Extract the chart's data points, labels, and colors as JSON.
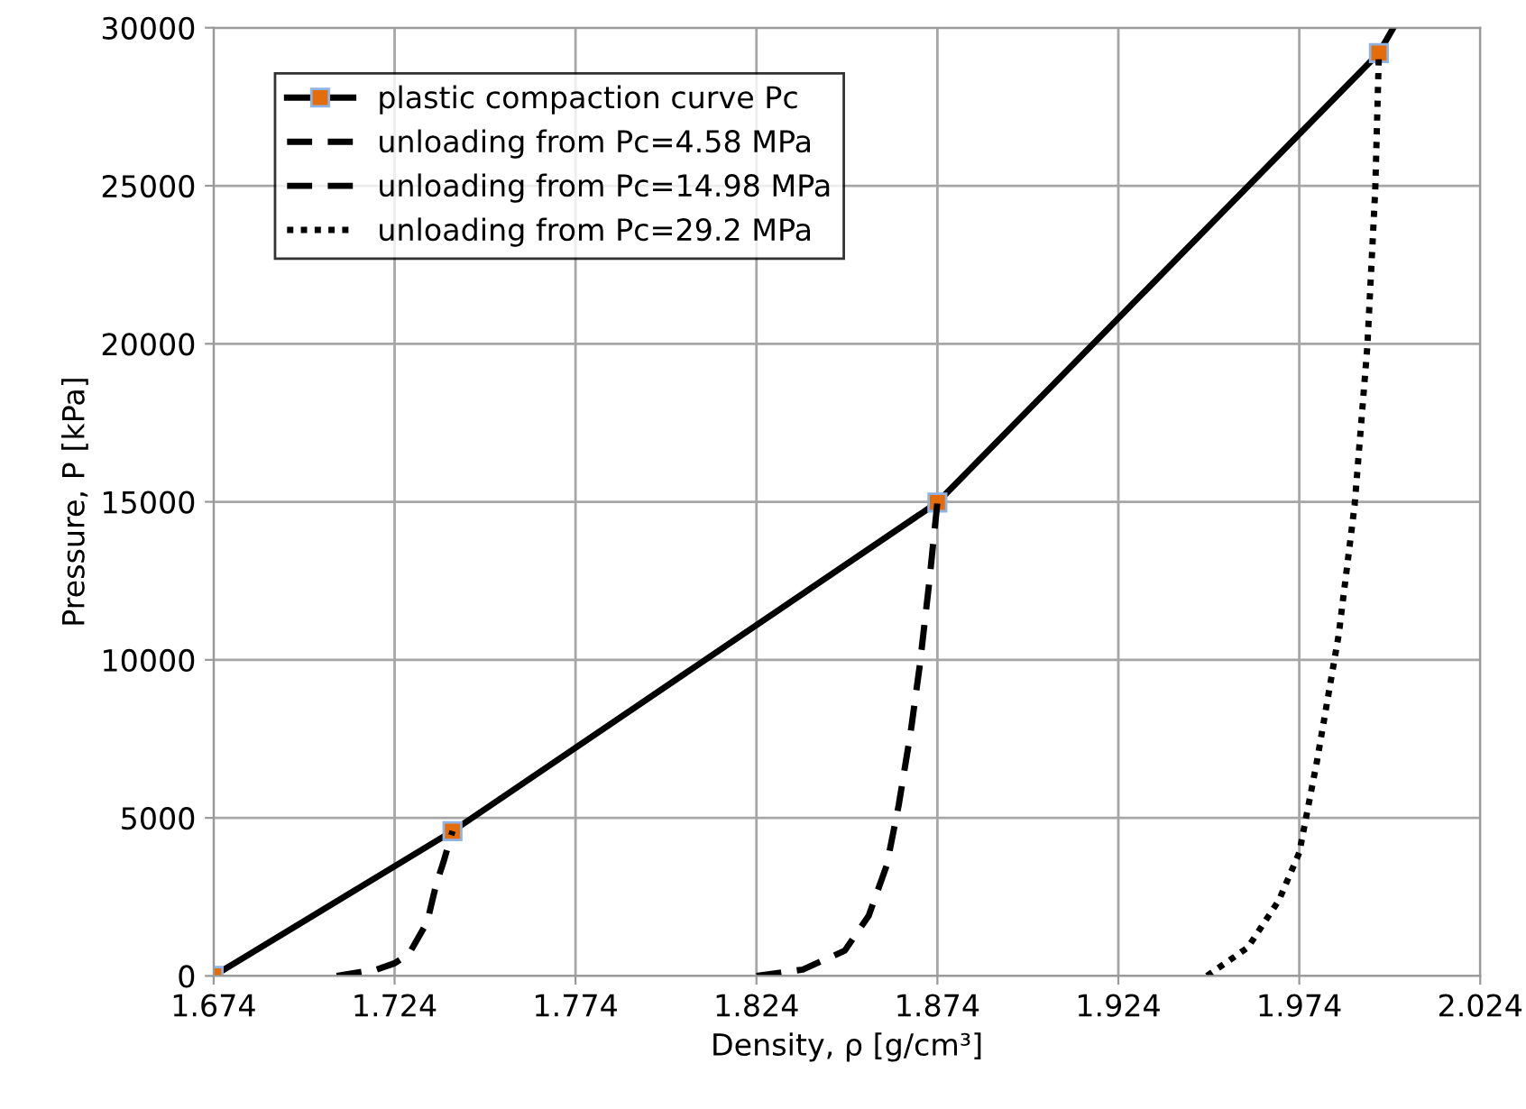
{
  "chart_data": {
    "type": "line",
    "xlabel": "Density, ρ [g/cm³]",
    "ylabel": "Pressure, P [kPa]",
    "xlim": [
      1.674,
      2.024
    ],
    "xticks": [
      {
        "value": 1.674,
        "label": "1.674"
      },
      {
        "value": 1.724,
        "label": "1.724"
      },
      {
        "value": 1.774,
        "label": "1.774"
      },
      {
        "value": 1.824,
        "label": "1.824"
      },
      {
        "value": 1.874,
        "label": "1.874"
      },
      {
        "value": 1.924,
        "label": "1.924"
      },
      {
        "value": 1.974,
        "label": "1.974"
      },
      {
        "value": 2.024,
        "label": "2.024"
      }
    ],
    "ylim": [
      0,
      30000
    ],
    "yticks": [
      0,
      5000,
      10000,
      15000,
      20000,
      25000,
      30000
    ],
    "grid": true,
    "legend": "top left",
    "series": [
      {
        "name": "plastic compaction curve Pc",
        "color": "#000000",
        "marker": "square",
        "line_style": "solid",
        "x": [
          1.674,
          1.74,
          1.874,
          1.996,
          2.0
        ],
        "values": [
          0,
          4580,
          14980,
          29200,
          30000
        ]
      },
      {
        "name": "unloading from Pc=4.58 MPa",
        "color": "#000000",
        "marker": "none",
        "line_style": "dashed",
        "x": [
          1.708,
          1.719,
          1.724,
          1.728,
          1.733,
          1.7355,
          1.7375,
          1.74
        ],
        "values": [
          0,
          200,
          400,
          700,
          1700,
          2900,
          3600,
          4580
        ]
      },
      {
        "name": "unloading from Pc=14.98 MPa",
        "color": "#000000",
        "marker": "none",
        "line_style": "dashed",
        "x": [
          1.824,
          1.8368,
          1.8484,
          1.855,
          1.86,
          1.8633,
          1.8666,
          1.8691,
          1.8716,
          1.874
        ],
        "values": [
          0,
          200,
          800,
          1900,
          3500,
          5400,
          7700,
          9800,
          12300,
          14980
        ]
      },
      {
        "name": "unloading from Pc=29.2 MPa",
        "color": "#000000",
        "marker": "none",
        "line_style": "dotted",
        "x": [
          1.9485,
          1.9598,
          1.9684,
          1.974,
          1.9789,
          1.9849,
          1.9893,
          1.9928,
          1.995,
          1.996
        ],
        "values": [
          0,
          900,
          2400,
          3900,
          6800,
          10800,
          14900,
          19900,
          24900,
          29200
        ]
      }
    ]
  }
}
